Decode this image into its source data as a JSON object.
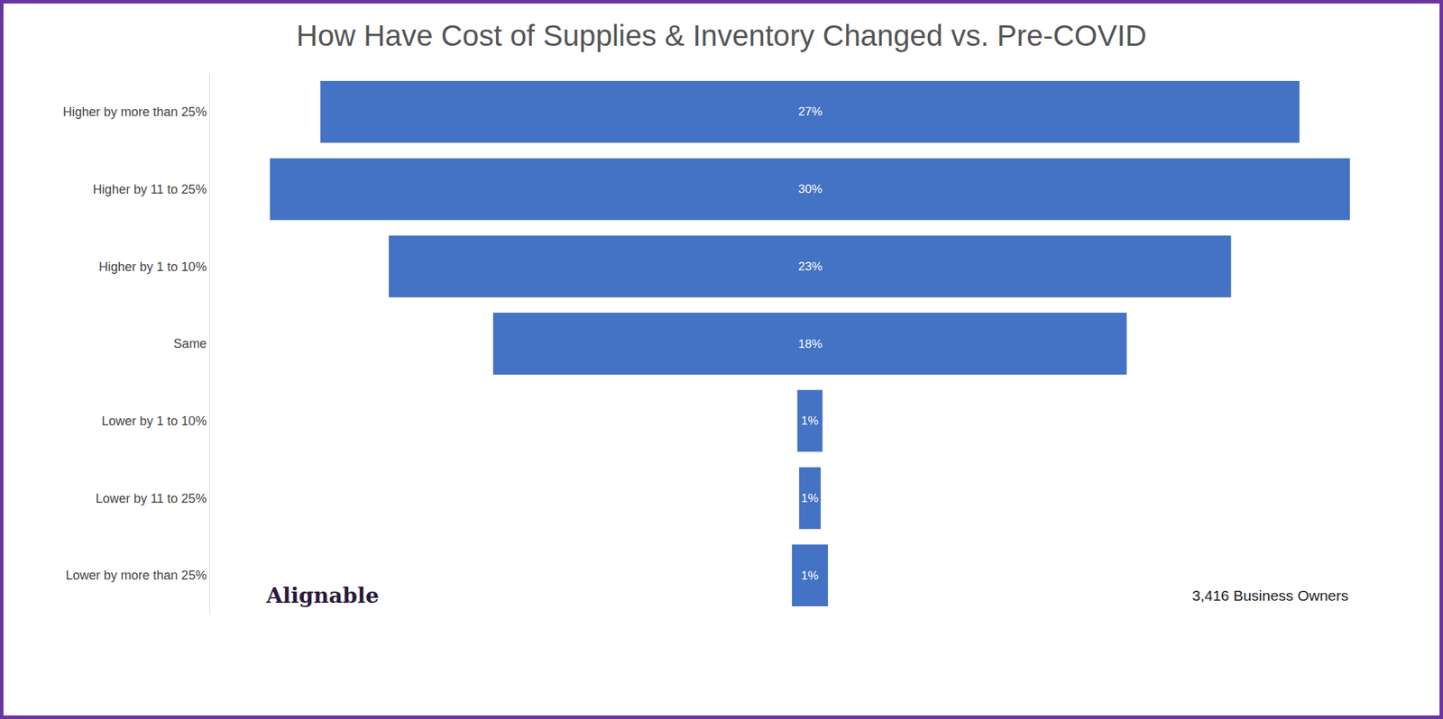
{
  "chart_data": {
    "type": "funnel",
    "title": "How Have Cost of Supplies & Inventory Changed vs. Pre-COVID",
    "categories": [
      "Higher by more than 25%",
      "Higher by 11 to 25%",
      "Higher by 1 to 10%",
      "Same",
      "Lower by 1 to 10%",
      "Lower by 11 to 25%",
      "Lower by more than 25%"
    ],
    "values": [
      27.2,
      30,
      23.4,
      17.6,
      0.7,
      0.6,
      1.0
    ],
    "value_labels": [
      "27%",
      "30%",
      "23%",
      "18%",
      "1%",
      "1%",
      "1%"
    ],
    "data_labels": true,
    "orientation": "horizontal",
    "color": "#4472c4",
    "tick_labels": "y",
    "annotations": [
      "Alignable",
      "3,416 Business Owners"
    ]
  }
}
